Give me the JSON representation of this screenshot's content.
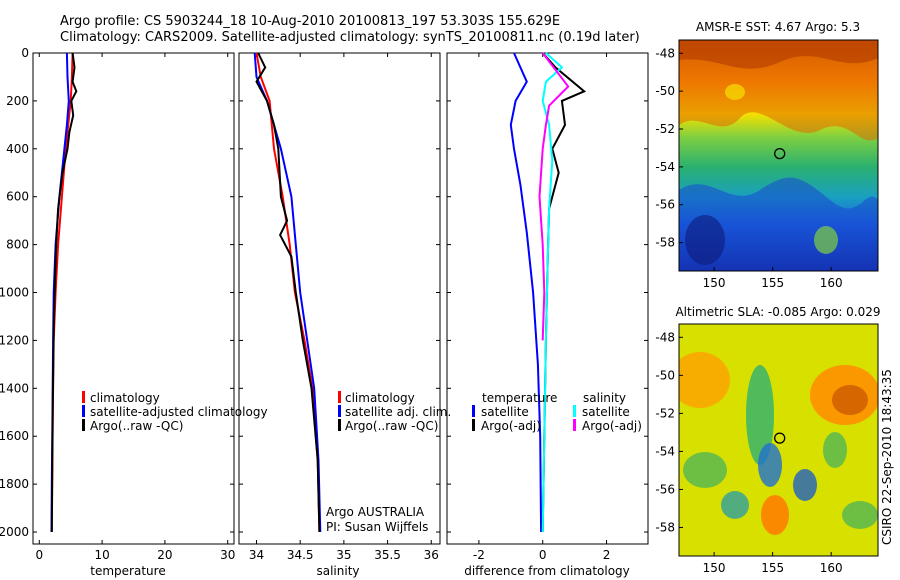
{
  "header": {
    "line1": "Argo profile: CS 5903244_18 10-Aug-2010 20100813_197 53.303S 155.629E",
    "line2": "Climatology: CARS2009. Satellite-adjusted climatology: synTS_20100811.nc (0.19d later)"
  },
  "colors": {
    "climatology": "#ff0000",
    "satellite": "#0000ff",
    "argo": "#000000",
    "sat_salinity": "#00ffff",
    "argo_salinity_diff": "#ff00ff"
  },
  "chart_data": [
    {
      "type": "line",
      "xlabel": "temperature",
      "xlim": [
        -1,
        31
      ],
      "xticks": [
        0,
        10,
        20,
        30
      ],
      "ylim": [
        2050,
        0
      ],
      "yticks": [
        0,
        200,
        400,
        600,
        800,
        1000,
        1200,
        1400,
        1600,
        1800,
        2000
      ],
      "legend": {
        "placement": "lower-right",
        "entries": [
          "climatology",
          "satellite-adjusted climatology",
          "Argo(..raw -QC)"
        ]
      },
      "series": [
        {
          "name": "climatology",
          "color": "#ff0000",
          "x": [
            5.3,
            5.2,
            5.0,
            4.6,
            4.2,
            3.6,
            3.0,
            2.6,
            2.3,
            2.15,
            2.05,
            2.0
          ],
          "y": [
            0,
            100,
            200,
            300,
            400,
            600,
            800,
            1000,
            1200,
            1500,
            1800,
            2000
          ]
        },
        {
          "name": "satellite-adjusted climatology",
          "color": "#0000ff",
          "x": [
            4.4,
            4.5,
            4.7,
            4.4,
            4.0,
            3.2,
            2.6,
            2.3,
            2.2,
            2.1,
            2.0,
            1.95
          ],
          "y": [
            0,
            100,
            200,
            300,
            400,
            600,
            800,
            1000,
            1200,
            1500,
            1800,
            2000
          ]
        },
        {
          "name": "Argo(..raw -QC)",
          "color": "#000000",
          "x": [
            5.3,
            5.6,
            5.3,
            5.9,
            5.1,
            5.4,
            4.8,
            4.5,
            3.7,
            3.0,
            2.7,
            2.5,
            2.3,
            2.15,
            2.05,
            2.0
          ],
          "y": [
            0,
            60,
            120,
            160,
            200,
            260,
            330,
            400,
            500,
            650,
            800,
            950,
            1150,
            1450,
            1750,
            2000
          ]
        }
      ]
    },
    {
      "type": "line",
      "xlabel": "salinity",
      "xlim": [
        33.8,
        36.1
      ],
      "xticks": [
        34,
        34.5,
        35,
        35.5,
        36
      ],
      "ylim": [
        2050,
        0
      ],
      "legend": {
        "placement": "lower-right",
        "entries": [
          "climatology",
          "satellite adj. clim.",
          "Argo(..raw -QC)"
        ]
      },
      "annotation": [
        "Argo AUSTRALIA",
        "PI: Susan Wijffels"
      ],
      "series": [
        {
          "name": "climatology",
          "color": "#ff0000",
          "x": [
            34.0,
            34.05,
            34.15,
            34.2,
            34.3,
            34.38,
            34.44,
            34.55,
            34.64,
            34.7,
            34.72
          ],
          "y": [
            0,
            100,
            200,
            400,
            600,
            800,
            1000,
            1200,
            1400,
            1700,
            2000
          ]
        },
        {
          "name": "satellite adj. clim.",
          "color": "#0000ff",
          "x": [
            33.98,
            34.0,
            34.12,
            34.28,
            34.4,
            34.45,
            34.5,
            34.58,
            34.66,
            34.71,
            34.73
          ],
          "y": [
            0,
            100,
            200,
            400,
            600,
            800,
            1000,
            1200,
            1400,
            1700,
            2000
          ]
        },
        {
          "name": "Argo(..raw -QC)",
          "color": "#000000",
          "x": [
            34.02,
            34.1,
            34.0,
            34.12,
            34.2,
            34.25,
            34.28,
            34.35,
            34.27,
            34.4,
            34.45,
            34.53,
            34.63,
            34.7,
            34.72
          ],
          "y": [
            0,
            60,
            120,
            200,
            300,
            400,
            600,
            700,
            760,
            850,
            1000,
            1200,
            1400,
            1700,
            2000
          ]
        }
      ]
    },
    {
      "type": "line",
      "xlabel": "difference from climatology",
      "xlim": [
        -3,
        3.3
      ],
      "xticks": [
        -2,
        0,
        2
      ],
      "ylim": [
        2050,
        0
      ],
      "legend": {
        "placement": "lower-center",
        "headers": [
          "temperature",
          "salinity"
        ],
        "entries": [
          "satellite",
          "Argo(-adj)",
          "satellite",
          "Argo(-adj)"
        ]
      },
      "series": [
        {
          "name": "temperature satellite",
          "color": "#0000ff",
          "x": [
            -0.9,
            -0.7,
            -0.5,
            -0.85,
            -1.0,
            -0.9,
            -0.7,
            -0.5,
            -0.3,
            -0.15,
            -0.08,
            -0.05
          ],
          "y": [
            0,
            60,
            120,
            200,
            300,
            400,
            550,
            750,
            1000,
            1300,
            1600,
            2000
          ]
        },
        {
          "name": "temperature Argo(-adj)",
          "color": "#000000",
          "x": [
            0.0,
            0.4,
            1.3,
            0.6,
            0.7,
            0.3,
            0.5,
            0.2,
            0.15,
            0.1,
            0.05,
            0.0
          ],
          "y": [
            0,
            60,
            160,
            200,
            300,
            400,
            500,
            650,
            900,
            1200,
            1600,
            2000
          ]
        },
        {
          "name": "salinity satellite",
          "color": "#00ffff",
          "x": [
            0.1,
            0.6,
            0.1,
            0.0,
            0.2,
            0.3,
            0.2,
            0.15,
            0.1,
            0.05,
            0.0
          ],
          "y": [
            0,
            60,
            120,
            200,
            300,
            450,
            650,
            900,
            1200,
            1600,
            2000
          ]
        },
        {
          "name": "salinity Argo(-adj)",
          "color": "#ff00ff",
          "x": [
            0.0,
            0.8,
            0.2,
            0.1,
            0.0,
            -0.1,
            0.0,
            0.05,
            0.0
          ],
          "y": [
            0,
            140,
            220,
            300,
            400,
            600,
            800,
            1000,
            1200
          ]
        }
      ]
    },
    {
      "type": "heatmap",
      "title": "AMSR-E SST: 4.67  Argo: 5.3",
      "xlim": [
        147,
        164
      ],
      "xticks": [
        150,
        155,
        160
      ],
      "ylim": [
        -59.5,
        -47.3
      ],
      "yticks": [
        -48,
        -50,
        -52,
        -54,
        -56,
        -58
      ],
      "marker": {
        "lon": 155.6,
        "lat": -53.3
      }
    },
    {
      "type": "heatmap",
      "title": "Altimetric SLA: -0.085  Argo: 0.029",
      "xlim": [
        147,
        164
      ],
      "xticks": [
        150,
        155,
        160
      ],
      "ylim": [
        -59.5,
        -47.3
      ],
      "yticks": [
        -48,
        -50,
        -52,
        -54,
        -56,
        -58
      ],
      "marker": {
        "lon": 155.6,
        "lat": -53.3
      }
    }
  ],
  "side_label": "CSIRO 22-Sep-2010 18:43:35"
}
